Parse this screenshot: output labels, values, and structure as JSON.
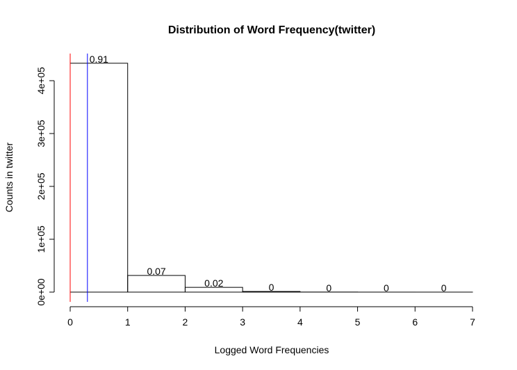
{
  "chart_data": {
    "type": "bar",
    "title": "Distribution of Word Frequency(twitter)",
    "xlabel": "Logged Word Frequencies",
    "ylabel": "Counts in twitter",
    "xlim": [
      0,
      7
    ],
    "ylim": [
      0,
      450000
    ],
    "x_ticks": [
      "0",
      "1",
      "2",
      "3",
      "4",
      "5",
      "6",
      "7"
    ],
    "y_ticks": [
      "0e+00",
      "1e+05",
      "2e+05",
      "3e+05",
      "4e+05"
    ],
    "bins": [
      {
        "start": 0,
        "end": 1,
        "value": 433000,
        "label": "0.91"
      },
      {
        "start": 1,
        "end": 2,
        "value": 31500,
        "label": "0.07"
      },
      {
        "start": 2,
        "end": 3,
        "value": 9000,
        "label": "0.02"
      },
      {
        "start": 3,
        "end": 4,
        "value": 1200,
        "label": "0"
      },
      {
        "start": 4,
        "end": 5,
        "value": 150,
        "label": "0"
      },
      {
        "start": 5,
        "end": 6,
        "value": 30,
        "label": "0"
      },
      {
        "start": 6,
        "end": 7,
        "value": 5,
        "label": "0"
      }
    ],
    "reference_lines": [
      {
        "x": 0,
        "color": "#ff0000"
      },
      {
        "x": 0.3,
        "color": "#0000ff"
      }
    ],
    "grid": false,
    "legend": false
  }
}
